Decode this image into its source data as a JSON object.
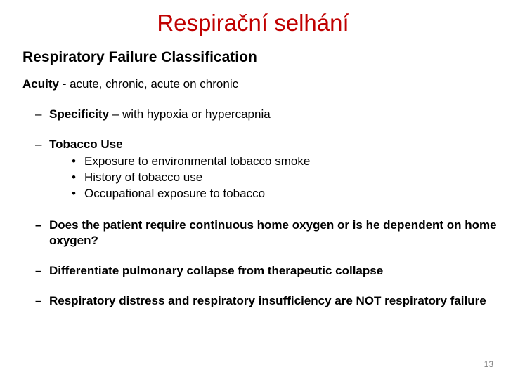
{
  "title": "Respirační selhání",
  "subtitle": "Respiratory Failure Classification",
  "acuity": {
    "label": "Acuity",
    "text": " - acute, chronic, acute on chronic"
  },
  "bullets": {
    "specificity": {
      "label": "Specificity",
      "text": " – with hypoxia or hypercapnia"
    },
    "tobacco": {
      "label": "Tobacco Use",
      "items": [
        "Exposure to environmental tobacco smoke",
        "History of tobacco use",
        "Occupational exposure to tobacco"
      ]
    },
    "oxygen": "Does the patient require continuous home oxygen or is he dependent on home oxygen?",
    "collapse": "Differentiate pulmonary collapse from therapeutic collapse",
    "distress": "Respiratory distress and respiratory insufficiency are NOT respiratory failure"
  },
  "page_number": "13"
}
